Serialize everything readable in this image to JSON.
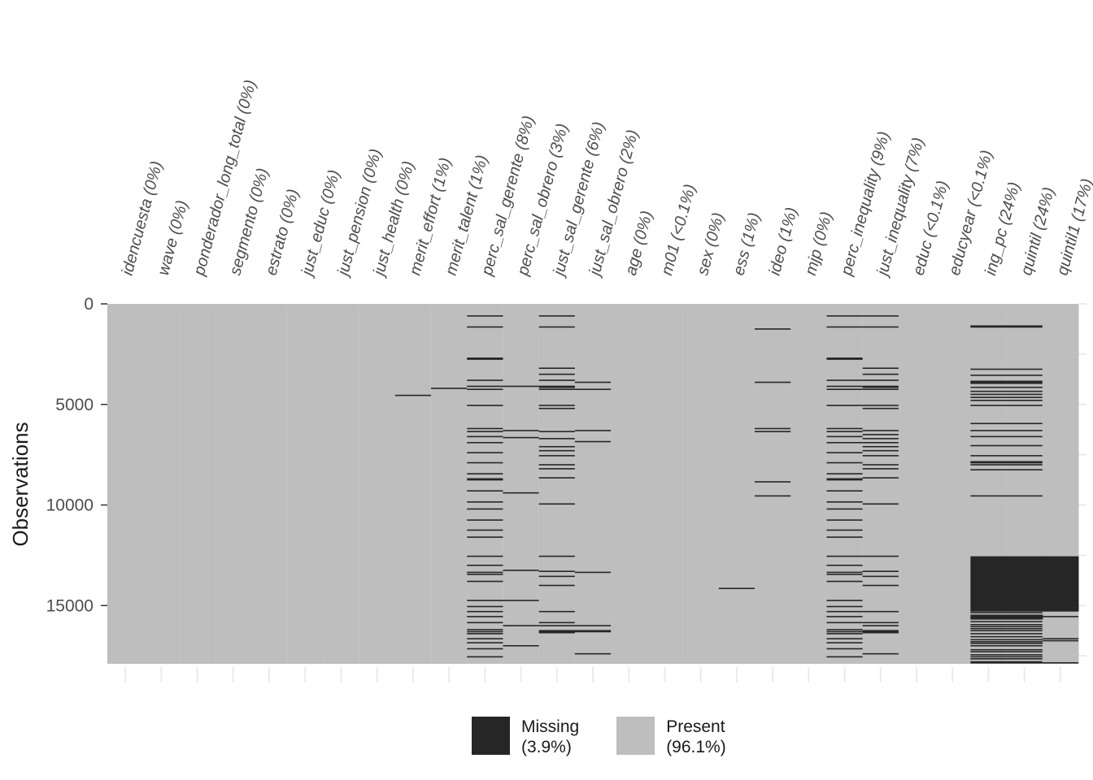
{
  "chart_data": {
    "type": "heatmap",
    "ylabel": "Observations",
    "ylim": [
      0,
      17898
    ],
    "yticks": [
      0,
      5000,
      10000,
      15000
    ],
    "yticklabels": [
      "0",
      "5000",
      "10000",
      "15000"
    ],
    "variables": [
      "idencuesta (0%)",
      "wave (0%)",
      "ponderador_long_total (0%)",
      "segmento (0%)",
      "estrato (0%)",
      "just_educ (0%)",
      "just_pension (0%)",
      "just_health (0%)",
      "merit_effort (1%)",
      "merit_talent (1%)",
      "perc_sal_gerente (8%)",
      "perc_sal_obrero (3%)",
      "just_sal_gerente (6%)",
      "just_sal_obrero (2%)",
      "age (0%)",
      "m01 (<0.1%)",
      "sex (0%)",
      "ess (1%)",
      "ideo (1%)",
      "mjp (0%)",
      "perc_inequality (9%)",
      "just_inequality (7%)",
      "educ (<0.1%)",
      "educyear (<0.1%)",
      "ing_pc (24%)",
      "quintil (24%)",
      "quintil1 (17%)"
    ],
    "missing_rows": [
      {
        "var": 8,
        "rows": [
          4550
        ]
      },
      {
        "var": 9,
        "rows": [
          4200
        ]
      },
      {
        "var": 10,
        "rows": [
          600,
          1150,
          2700,
          2750,
          3800,
          4100,
          4250,
          5050,
          6200,
          6350,
          6600,
          6900,
          7400,
          7900,
          8450,
          8700,
          8750,
          9300,
          9850,
          10200,
          10750,
          11250,
          11600,
          12550,
          13000,
          13350,
          13450,
          13800,
          14750,
          15050,
          15300,
          15550,
          15850,
          16200,
          16300,
          16400,
          16650,
          16850,
          17150,
          17550
        ]
      },
      {
        "var": 11,
        "rows": [
          4100,
          6300,
          6650,
          9400,
          13250,
          14750,
          16000,
          17000
        ]
      },
      {
        "var": 12,
        "rows": [
          600,
          1150,
          3200,
          3500,
          3800,
          4100,
          4150,
          4250,
          5050,
          5200,
          6350,
          6700,
          7100,
          7300,
          7550,
          8000,
          8200,
          8650,
          9950,
          12550,
          13300,
          13550,
          14000,
          15300,
          15850,
          16000,
          16250,
          16300,
          16350
        ]
      },
      {
        "var": 13,
        "rows": [
          3900,
          4250,
          6300,
          6850,
          13350,
          16000,
          16250,
          16300,
          17400
        ]
      },
      {
        "var": 17,
        "rows": [
          14150
        ]
      },
      {
        "var": 18,
        "rows": [
          1250,
          3900,
          6200,
          6350,
          8850,
          9550
        ]
      },
      {
        "var": 20,
        "rows": [
          600,
          1150,
          2700,
          2750,
          3800,
          4100,
          4250,
          5050,
          6200,
          6350,
          6600,
          6900,
          7400,
          7900,
          8450,
          8700,
          8750,
          9300,
          9850,
          10200,
          10750,
          11250,
          11600,
          12550,
          13000,
          13350,
          13450,
          13800,
          14750,
          15050,
          15300,
          15550,
          15850,
          16200,
          16300,
          16400,
          16650,
          16850,
          17150,
          17550
        ]
      },
      {
        "var": 21,
        "rows": [
          600,
          1150,
          3200,
          3500,
          3800,
          4100,
          4150,
          4250,
          5050,
          5200,
          6300,
          6500,
          6700,
          6900,
          7100,
          7300,
          7550,
          8000,
          8200,
          8650,
          9950,
          12550,
          13300,
          13550,
          14000,
          15300,
          15850,
          16000,
          16250,
          16300,
          16350,
          17400
        ]
      },
      {
        "var": 24,
        "rows": [
          1100,
          1150,
          3250,
          3550,
          3850,
          3900,
          3950,
          4150,
          4350,
          4500,
          4650,
          4800,
          5050,
          5950,
          6300,
          6600,
          7050,
          7550,
          7850,
          7900,
          8000,
          8250,
          9550
        ]
      },
      {
        "var": 25,
        "rows": [
          1100,
          1150,
          3250,
          3550,
          3850,
          3900,
          3950,
          4150,
          4350,
          4500,
          4650,
          4800,
          5050,
          5950,
          6300,
          6600,
          7050,
          7550,
          7850,
          7900,
          8000,
          8250,
          9550
        ]
      },
      {
        "var": 26,
        "rows": [
          15550,
          16650,
          16750,
          17850
        ]
      }
    ],
    "missing_blocks": [
      {
        "vars": [
          24,
          25
        ],
        "from": 12550,
        "to": 15300
      },
      {
        "vars": [
          24,
          25
        ],
        "from": 15450,
        "to": 15700
      },
      {
        "vars": [
          24,
          25
        ],
        "from": 16850,
        "to": 16900
      },
      {
        "vars": [
          26
        ],
        "from": 12550,
        "to": 15300
      }
    ],
    "missing_thin_rows": {
      "vars": [
        24,
        25
      ],
      "rows": [
        15350,
        15800,
        15950,
        16050,
        16150,
        16250,
        16400,
        16550,
        16700,
        16800,
        17000,
        17200,
        17300,
        17450,
        17550,
        17650,
        17800,
        17850
      ]
    },
    "colors": {
      "missing": "#262626",
      "present": "#bebebe",
      "grid": "#ebebeb",
      "axis_text": "#4d4d4d"
    },
    "legend": [
      {
        "label": "Missing",
        "pct": "(3.9%)",
        "color": "#262626"
      },
      {
        "label": "Present",
        "pct": "(96.1%)",
        "color": "#bebebe"
      }
    ],
    "legend_position": "bottom"
  }
}
